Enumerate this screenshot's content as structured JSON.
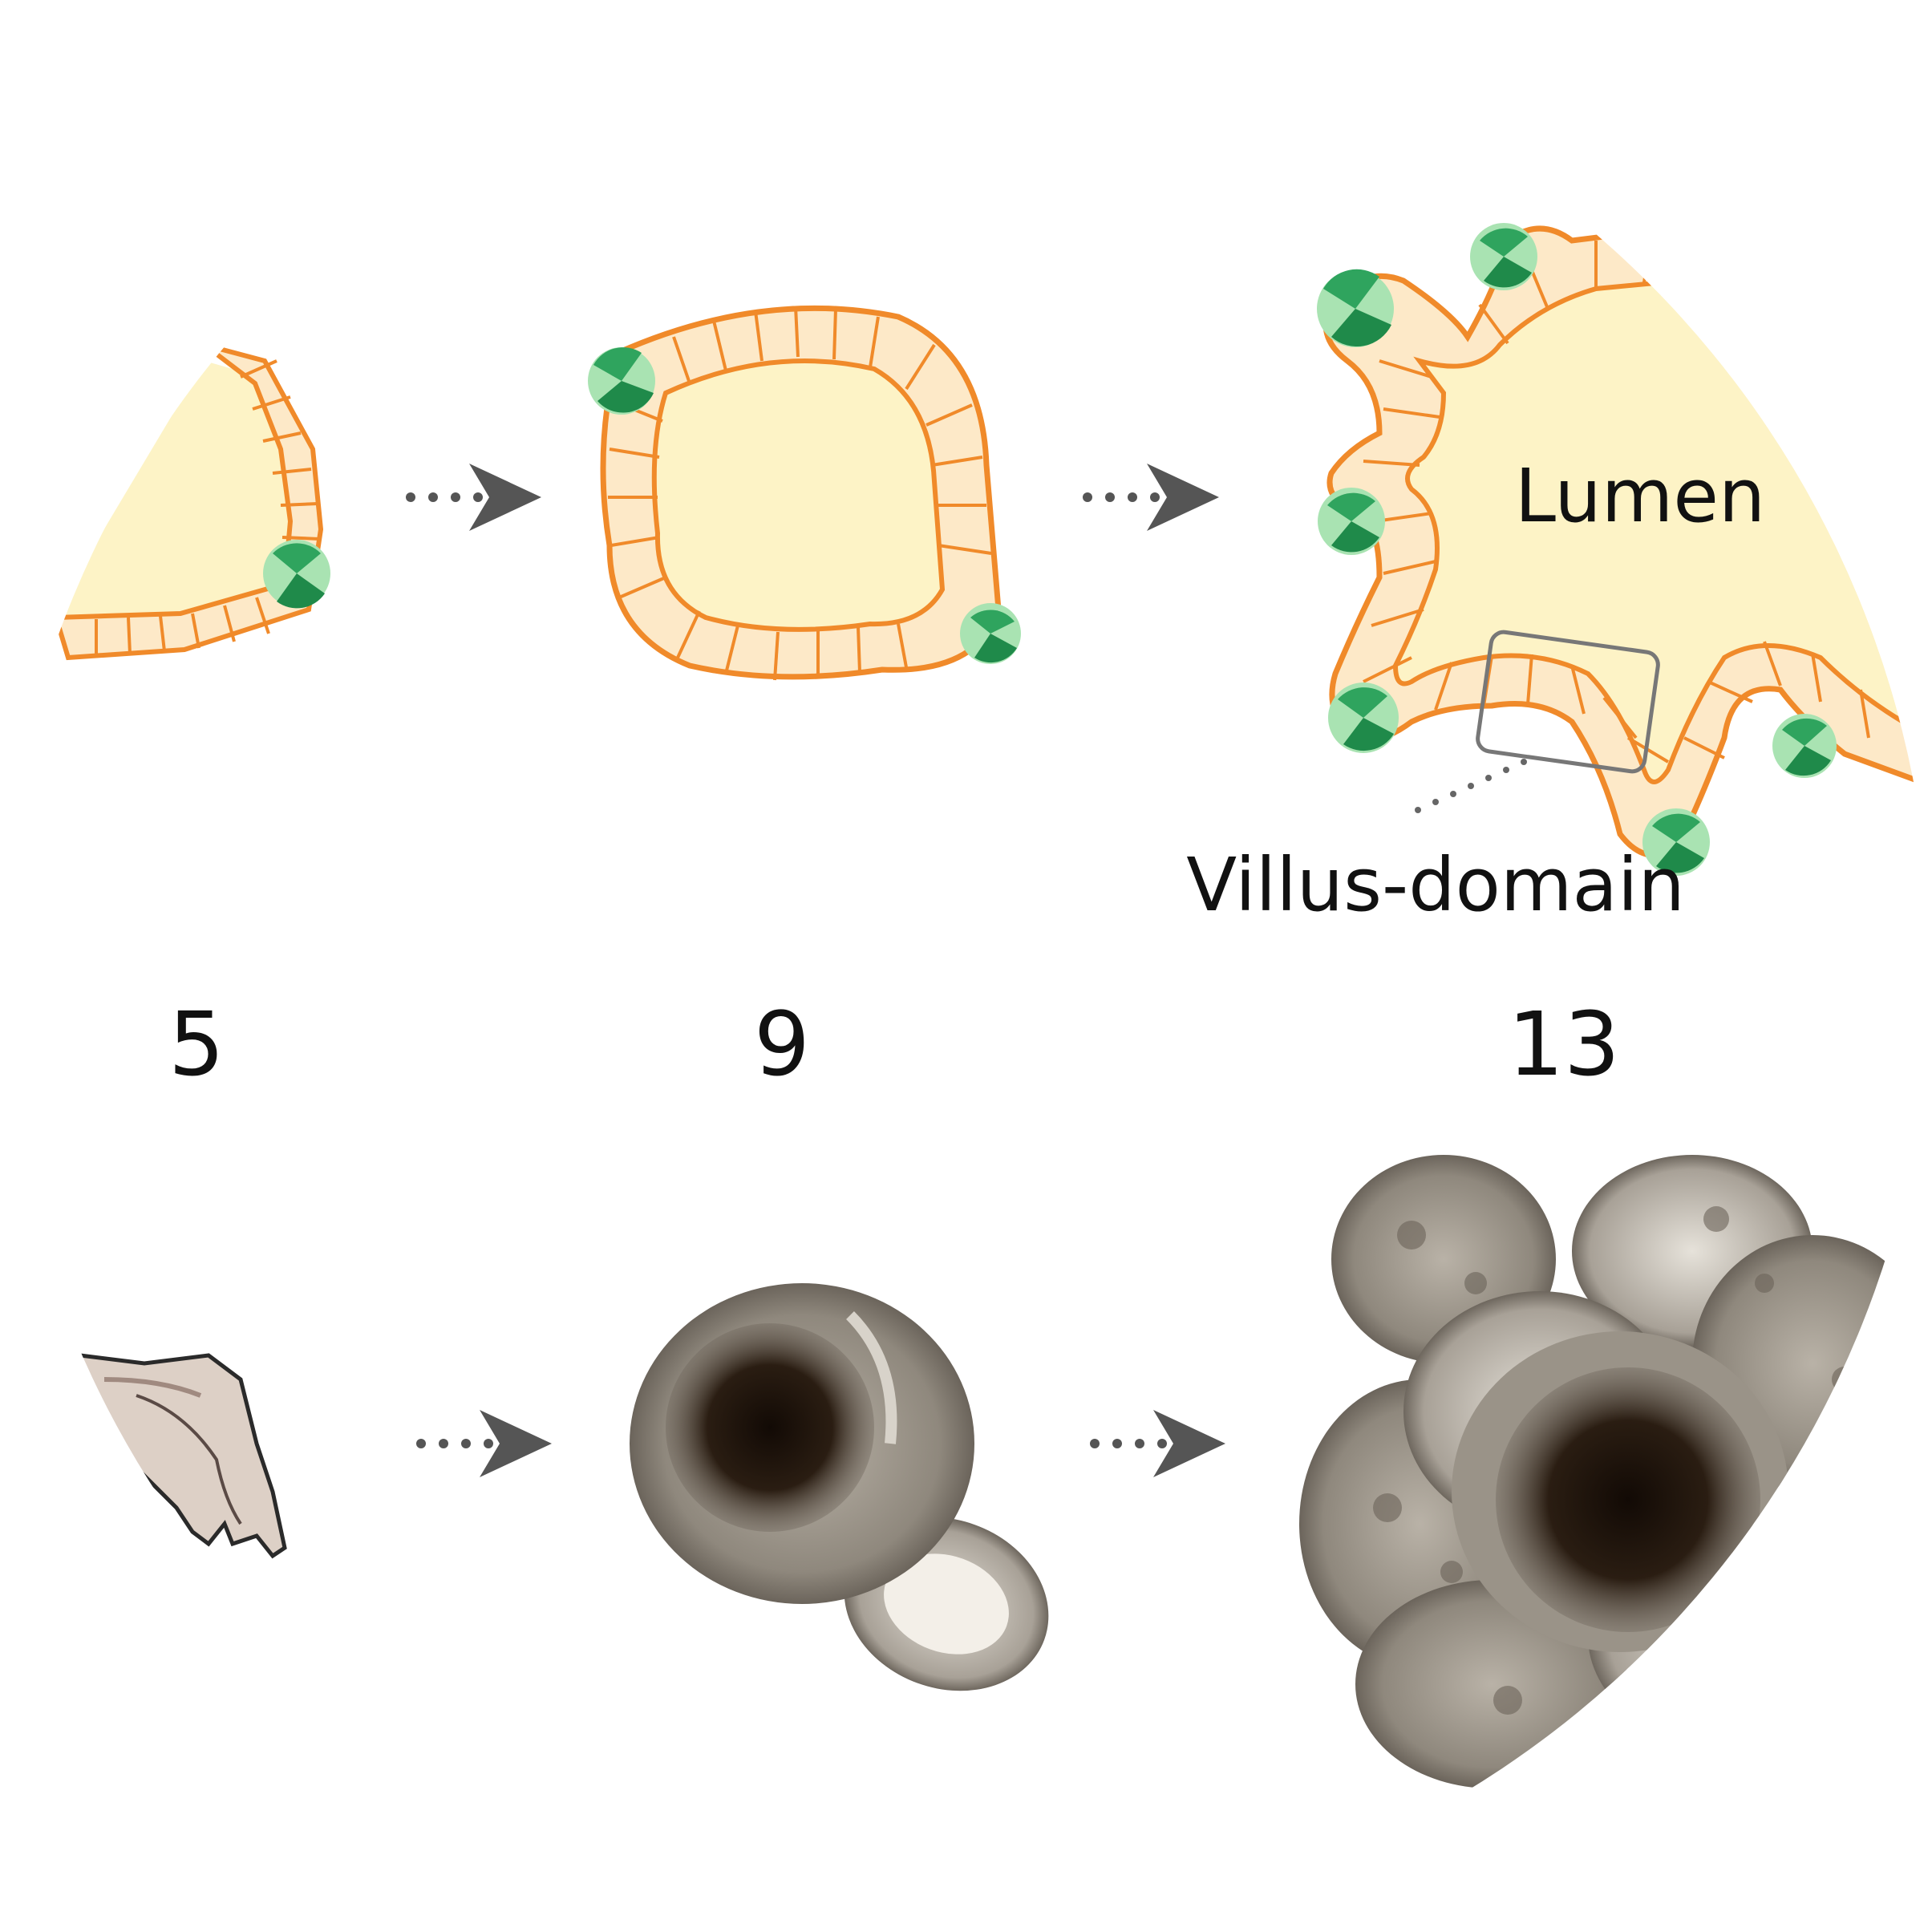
{
  "labels": {
    "lumen": "Lumen",
    "villus_domain": "Villus-domain"
  },
  "stages": [
    {
      "day": "5"
    },
    {
      "day": "9"
    },
    {
      "day": "13"
    }
  ],
  "colors": {
    "lumen_fill": "#fdf3c6",
    "epithelium": "#f08a2a",
    "crypt_cell": "#2fa45e",
    "crypt_light": "#a9e3b2",
    "arrow": "#555555",
    "photo_dark": "#1e140c",
    "photo_tissue": "#8c857b"
  }
}
